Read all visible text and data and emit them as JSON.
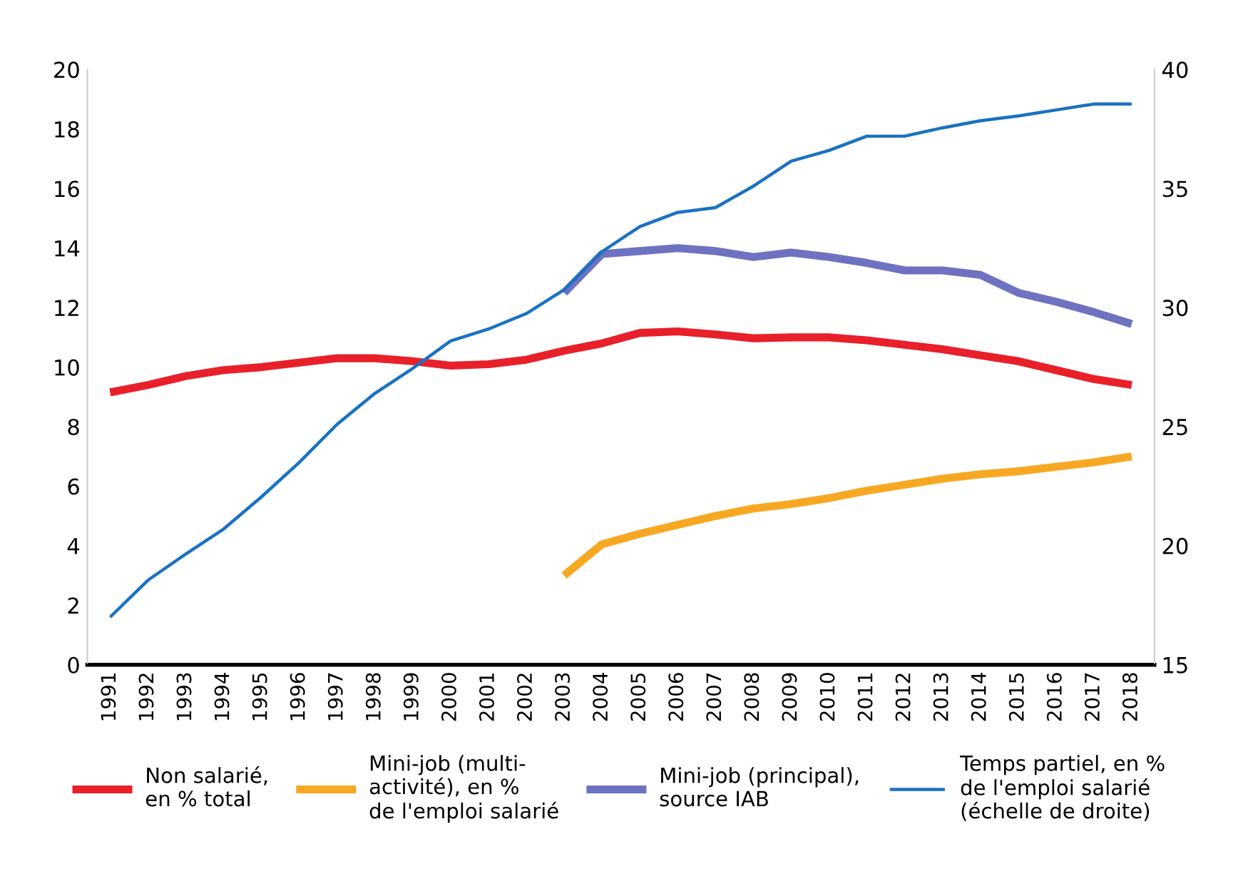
{
  "chart_data": {
    "type": "line",
    "categories": [
      "1991",
      "1992",
      "1993",
      "1994",
      "1995",
      "1996",
      "1997",
      "1998",
      "1999",
      "2000",
      "2001",
      "2002",
      "2003",
      "2004",
      "2005",
      "2006",
      "2007",
      "2008",
      "2009",
      "2010",
      "2011",
      "2012",
      "2013",
      "2014",
      "2015",
      "2016",
      "2017",
      "2018"
    ],
    "series": [
      {
        "name": "Non salarié,\nen % total",
        "color": "#e8202a",
        "values": [
          9.15,
          9.4,
          9.7,
          9.9,
          10.0,
          10.15,
          10.3,
          10.3,
          10.2,
          10.05,
          10.1,
          10.25,
          10.55,
          10.8,
          11.15,
          11.2,
          11.1,
          10.97,
          11.0,
          11.0,
          10.9,
          10.75,
          10.6,
          10.4,
          10.2,
          9.9,
          9.6,
          9.4
        ]
      },
      {
        "name": "Mini-job (multi-\nactivité), en %\nde l'emploi salarié",
        "color": "#f7a823",
        "values": [
          null,
          null,
          null,
          null,
          null,
          null,
          null,
          null,
          null,
          null,
          null,
          null,
          3.0,
          4.05,
          4.4,
          4.7,
          5.0,
          5.25,
          5.4,
          5.6,
          5.85,
          6.05,
          6.25,
          6.4,
          6.5,
          6.65,
          6.8,
          7.0
        ]
      },
      {
        "name": "Mini-job (principal),\nsource IAB",
        "color": "#6e72c0",
        "values": [
          null,
          null,
          null,
          null,
          null,
          null,
          null,
          null,
          null,
          null,
          null,
          null,
          12.5,
          13.8,
          13.9,
          14.0,
          13.9,
          13.7,
          13.85,
          13.7,
          13.5,
          13.25,
          13.25,
          13.1,
          12.5,
          12.2,
          11.85,
          11.45
        ]
      },
      {
        "name": "Temps partiel, en %\nde l'emploi salarié\n(échelle de droite)",
        "color": "#1a72c2",
        "axis": "y2",
        "values": [
          17.0,
          18.55,
          19.65,
          20.7,
          22.05,
          23.5,
          25.1,
          26.4,
          27.45,
          28.6,
          29.1,
          29.75,
          30.75,
          32.35,
          33.4,
          34.0,
          34.2,
          35.1,
          36.15,
          36.6,
          37.2,
          37.2,
          37.55,
          37.85,
          38.05,
          38.3,
          38.55,
          38.55
        ]
      }
    ],
    "ylim": [
      0,
      20
    ],
    "yticks": [
      0,
      2,
      4,
      6,
      8,
      10,
      12,
      14,
      16,
      18,
      20
    ],
    "y2lim": [
      15,
      40
    ],
    "y2ticks": [
      15,
      20,
      25,
      30,
      35,
      40
    ],
    "grid": false,
    "legend": "bottom",
    "marker": "none",
    "line_style": "solid"
  }
}
